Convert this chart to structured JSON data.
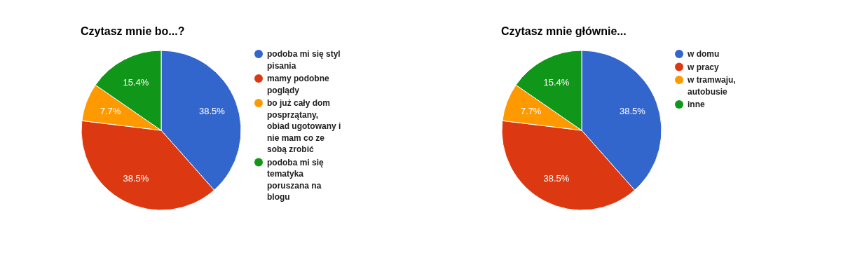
{
  "chart_data": [
    {
      "type": "pie",
      "title": "Czytasz mnie bo...?",
      "categories": [
        "podoba mi się styl pisania",
        "mamy podobne poglądy",
        "bo już cały dom posprzątany, obiad ugotowany i nie mam co ze sobą zrobić",
        "podoba mi się tematyka poruszana na blogu"
      ],
      "values": [
        38.5,
        38.5,
        7.7,
        15.4
      ],
      "value_labels": [
        "38.5%",
        "38.5%",
        "7.7%",
        "15.4%"
      ],
      "colors": [
        "#3366cc",
        "#dc3912",
        "#ff9900",
        "#109618"
      ],
      "legend": "right"
    },
    {
      "type": "pie",
      "title": "Czytasz mnie głównie...",
      "categories": [
        "w domu",
        "w pracy",
        "w tramwaju, autobusie",
        "inne"
      ],
      "values": [
        38.5,
        38.5,
        7.7,
        15.4
      ],
      "value_labels": [
        "38.5%",
        "38.5%",
        "7.7%",
        "15.4%"
      ],
      "colors": [
        "#3366cc",
        "#dc3912",
        "#ff9900",
        "#109618"
      ],
      "legend": "right"
    }
  ]
}
